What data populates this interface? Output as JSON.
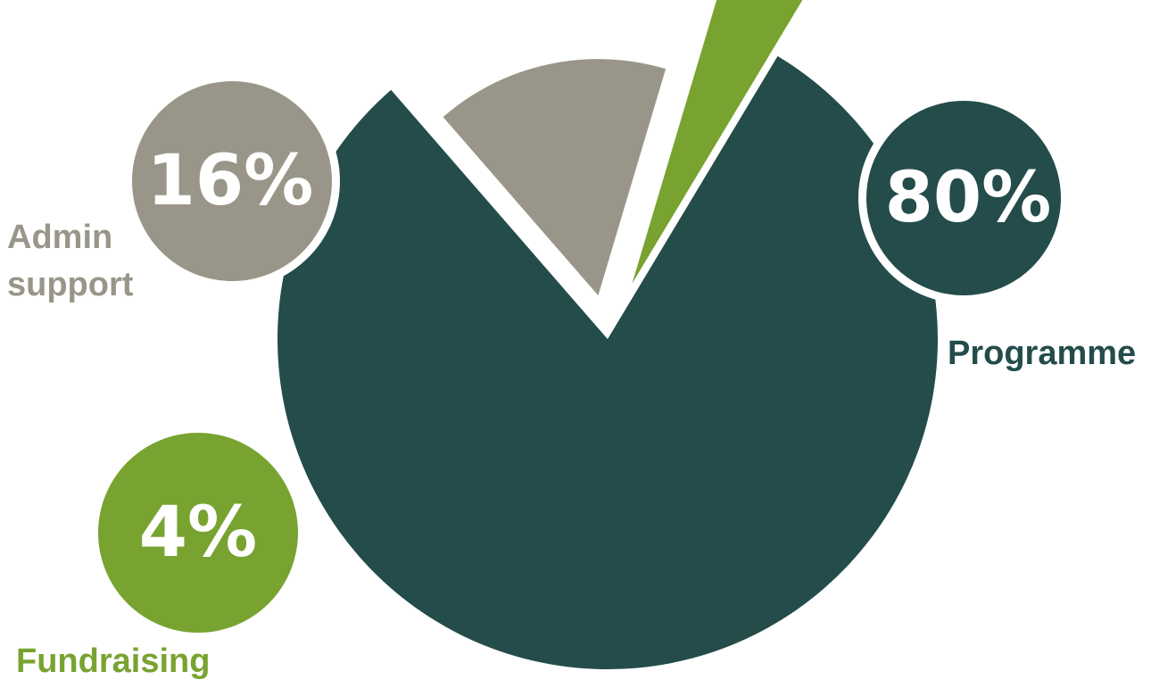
{
  "chart_data": {
    "type": "pie",
    "categories": [
      "Programme",
      "Admin\nsupport",
      "Fundraising"
    ],
    "values": [
      80,
      16,
      4
    ],
    "data_labels": [
      "80%",
      "16%",
      "4%"
    ],
    "colors": [
      "#234c4b",
      "#999689",
      "#78a330"
    ],
    "legend": "none",
    "exploded_slices": [
      "Admin\nsupport",
      "Fundraising"
    ]
  }
}
